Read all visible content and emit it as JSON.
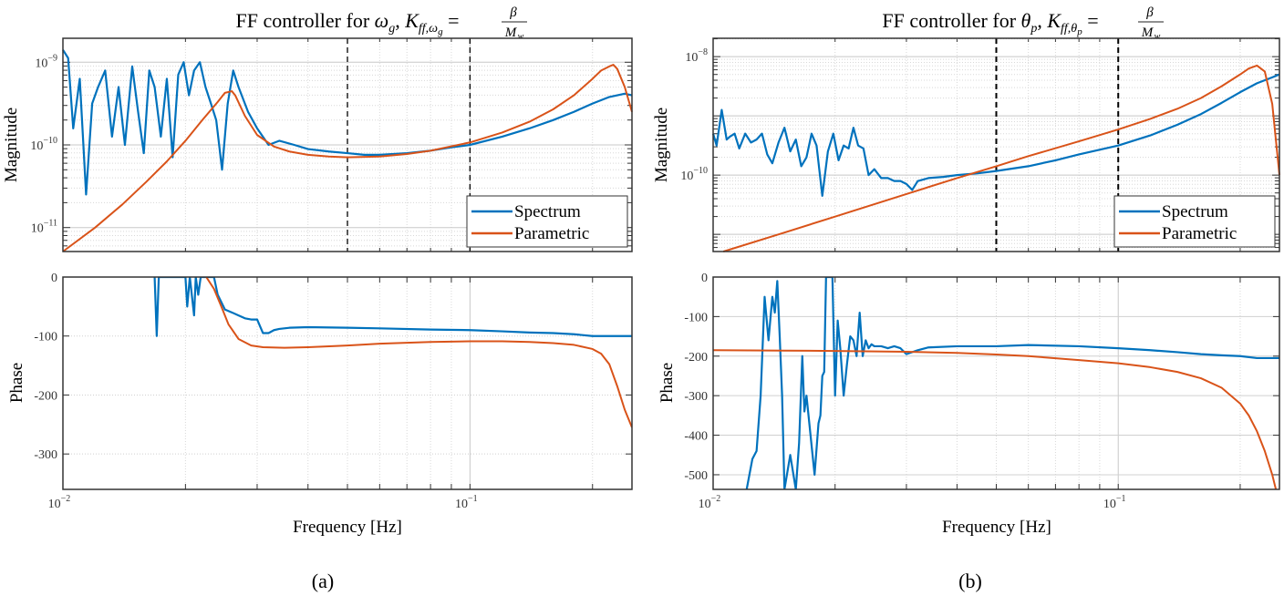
{
  "figure": {
    "captions": [
      "(a)",
      "(b)"
    ]
  },
  "chart_data": [
    {
      "type": "line",
      "panel": "a",
      "title": "FF controller for ωg, Kff,ωg = β / Mw",
      "title_parts": {
        "prefix": "FF controller for ",
        "var": "ω",
        "var_sub": "g",
        "k": "K",
        "k_sub": "ff,ω",
        "k_subsub": "g",
        "num": "β",
        "den": "M",
        "den_sub": "w"
      },
      "xlabel": "Frequency [Hz]",
      "xscale": "log",
      "xlim": [
        0.01,
        0.25
      ],
      "xticks": [
        {
          "value": 0.01,
          "base": "10",
          "exp": "−2"
        },
        {
          "value": 0.1,
          "base": "10",
          "exp": "−1"
        }
      ],
      "vlines": [
        0.05,
        0.1
      ],
      "legend": {
        "position": "bottom-right",
        "entries": [
          "Spectrum",
          "Parametric"
        ]
      },
      "colors": {
        "Spectrum": "#0072bd",
        "Parametric": "#d95319"
      },
      "magnitude": {
        "ylabel": "Magnitude",
        "yscale": "log",
        "ylim_log10": [
          -11.29,
          -8.71
        ],
        "yticks": [
          {
            "log10": -9,
            "base": "10",
            "exp": "−9"
          },
          {
            "log10": -10,
            "base": "10",
            "exp": "−10"
          },
          {
            "log10": -11,
            "base": "10",
            "exp": "−11"
          }
        ],
        "series": [
          {
            "name": "Spectrum",
            "x": [
              0.01,
              0.0103,
              0.0106,
              0.011,
              0.0114,
              0.0118,
              0.0122,
              0.0127,
              0.0132,
              0.0137,
              0.0142,
              0.0148,
              0.0153,
              0.0158,
              0.0163,
              0.0168,
              0.0174,
              0.018,
              0.0186,
              0.0192,
              0.0198,
              0.0204,
              0.021,
              0.0217,
              0.0224,
              0.0231,
              0.0238,
              0.0246,
              0.0254,
              0.0262,
              0.027,
              0.0285,
              0.03,
              0.032,
              0.034,
              0.037,
              0.04,
              0.045,
              0.05,
              0.055,
              0.06,
              0.07,
              0.08,
              0.09,
              0.1,
              0.12,
              0.14,
              0.16,
              0.18,
              0.2,
              0.22,
              0.24,
              0.25
            ],
            "y_log10": [
              -8.85,
              -8.95,
              -9.8,
              -9.2,
              -10.6,
              -9.5,
              -9.3,
              -9.1,
              -9.9,
              -9.3,
              -10.0,
              -9.05,
              -9.6,
              -10.1,
              -9.1,
              -9.3,
              -9.9,
              -9.2,
              -10.15,
              -9.15,
              -9.0,
              -9.4,
              -9.1,
              -9.0,
              -9.3,
              -9.5,
              -9.7,
              -10.3,
              -9.5,
              -9.1,
              -9.3,
              -9.6,
              -9.8,
              -10.0,
              -9.95,
              -10.0,
              -10.05,
              -10.08,
              -10.1,
              -10.12,
              -10.12,
              -10.1,
              -10.07,
              -10.03,
              -10.0,
              -9.9,
              -9.8,
              -9.7,
              -9.6,
              -9.5,
              -9.42,
              -9.38,
              -9.4
            ]
          },
          {
            "name": "Parametric",
            "x": [
              0.01,
              0.012,
              0.014,
              0.016,
              0.018,
              0.02,
              0.022,
              0.024,
              0.025,
              0.026,
              0.0265,
              0.028,
              0.03,
              0.033,
              0.036,
              0.04,
              0.045,
              0.05,
              0.06,
              0.07,
              0.08,
              0.1,
              0.12,
              0.14,
              0.16,
              0.18,
              0.2,
              0.21,
              0.22,
              0.225,
              0.23,
              0.24,
              0.25
            ],
            "y_log10": [
              -11.29,
              -11.0,
              -10.72,
              -10.45,
              -10.2,
              -9.95,
              -9.7,
              -9.48,
              -9.37,
              -9.35,
              -9.4,
              -9.65,
              -9.88,
              -10.02,
              -10.08,
              -10.12,
              -10.14,
              -10.15,
              -10.14,
              -10.11,
              -10.07,
              -9.97,
              -9.85,
              -9.72,
              -9.57,
              -9.4,
              -9.2,
              -9.1,
              -9.05,
              -9.03,
              -9.08,
              -9.3,
              -9.6
            ]
          }
        ]
      },
      "phase": {
        "ylabel": "Phase",
        "ylim": [
          -360,
          0
        ],
        "yticks": [
          0,
          -100,
          -200,
          -300
        ],
        "series": [
          {
            "name": "Spectrum",
            "x": [
              0.0168,
              0.017,
              0.0172,
              0.02,
              0.0202,
              0.0205,
              0.021,
              0.0212,
              0.0215,
              0.0218,
              0.022,
              0.0235,
              0.024,
              0.025,
              0.026,
              0.027,
              0.028,
              0.029,
              0.03,
              0.031,
              0.032,
              0.033,
              0.034,
              0.036,
              0.04,
              0.05,
              0.06,
              0.08,
              0.1,
              0.12,
              0.14,
              0.16,
              0.18,
              0.2,
              0.22,
              0.24,
              0.25
            ],
            "y": [
              0,
              -100,
              0,
              0,
              -50,
              0,
              -65,
              0,
              -30,
              0,
              0,
              0,
              -30,
              -55,
              -60,
              -65,
              -70,
              -72,
              -72,
              -95,
              -95,
              -90,
              -88,
              -86,
              -85,
              -86,
              -87,
              -89,
              -90,
              -92,
              -94,
              -95,
              -97,
              -100,
              -100,
              -100,
              -100
            ]
          },
          {
            "name": "Parametric",
            "x": [
              0.0225,
              0.0235,
              0.0245,
              0.0255,
              0.027,
              0.029,
              0.031,
              0.035,
              0.04,
              0.05,
              0.06,
              0.08,
              0.1,
              0.12,
              0.14,
              0.16,
              0.18,
              0.2,
              0.21,
              0.22,
              0.23,
              0.24,
              0.25
            ],
            "y": [
              0,
              -20,
              -50,
              -80,
              -105,
              -116,
              -119,
              -120,
              -119,
              -116,
              -113,
              -110,
              -109,
              -109,
              -110,
              -112,
              -115,
              -122,
              -130,
              -148,
              -185,
              -225,
              -255
            ]
          }
        ]
      }
    },
    {
      "type": "line",
      "panel": "b",
      "title": "FF controller for θp, Kff,θp = β / Mw",
      "title_parts": {
        "prefix": "FF controller for ",
        "var": "θ",
        "var_sub": "p",
        "k": "K",
        "k_sub": "ff,θ",
        "k_subsub": "p",
        "num": "β",
        "den": "M",
        "den_sub": "w"
      },
      "xlabel": "Frequency [Hz]",
      "xscale": "log",
      "xlim": [
        0.01,
        0.25
      ],
      "xticks": [
        {
          "value": 0.01,
          "base": "10",
          "exp": "−2"
        },
        {
          "value": 0.1,
          "base": "10",
          "exp": "−1"
        }
      ],
      "vlines": [
        0.05,
        0.1
      ],
      "legend": {
        "position": "bottom-right",
        "entries": [
          "Spectrum",
          "Parametric"
        ]
      },
      "colors": {
        "Spectrum": "#0072bd",
        "Parametric": "#d95319"
      },
      "magnitude": {
        "ylabel": "Magnitude",
        "yscale": "log",
        "ylim_log10": [
          -11.29,
          -7.69
        ],
        "yticks": [
          {
            "log10": -8,
            "base": "10",
            "exp": "−8"
          },
          {
            "log10": -10,
            "base": "10",
            "exp": "−10"
          }
        ],
        "series": [
          {
            "name": "Spectrum",
            "x": [
              0.01,
              0.0102,
              0.0105,
              0.0108,
              0.011,
              0.0113,
              0.0116,
              0.012,
              0.0124,
              0.0128,
              0.0132,
              0.0136,
              0.014,
              0.0145,
              0.015,
              0.0155,
              0.016,
              0.0165,
              0.017,
              0.0175,
              0.018,
              0.0186,
              0.0192,
              0.0198,
              0.0204,
              0.021,
              0.0216,
              0.0222,
              0.0228,
              0.0235,
              0.0242,
              0.025,
              0.026,
              0.027,
              0.028,
              0.029,
              0.03,
              0.031,
              0.032,
              0.034,
              0.037,
              0.04,
              0.045,
              0.05,
              0.06,
              0.07,
              0.08,
              0.1,
              0.12,
              0.14,
              0.16,
              0.18,
              0.2,
              0.22,
              0.24,
              0.25
            ],
            "y_log10": [
              -9.3,
              -9.5,
              -8.9,
              -9.4,
              -9.35,
              -9.3,
              -9.55,
              -9.3,
              -9.45,
              -9.4,
              -9.3,
              -9.65,
              -9.8,
              -9.45,
              -9.2,
              -9.6,
              -9.4,
              -9.85,
              -9.7,
              -9.3,
              -9.5,
              -10.35,
              -9.6,
              -9.3,
              -9.75,
              -9.5,
              -9.55,
              -9.2,
              -9.5,
              -9.55,
              -10.0,
              -9.9,
              -10.05,
              -10.05,
              -10.1,
              -10.1,
              -10.15,
              -10.25,
              -10.1,
              -10.05,
              -10.03,
              -10.0,
              -9.97,
              -9.93,
              -9.85,
              -9.75,
              -9.65,
              -9.5,
              -9.33,
              -9.15,
              -8.97,
              -8.78,
              -8.6,
              -8.45,
              -8.35,
              -8.3
            ]
          },
          {
            "name": "Parametric",
            "x": [
              0.0106,
              0.015,
              0.02,
              0.03,
              0.04,
              0.05,
              0.06,
              0.08,
              0.1,
              0.12,
              0.14,
              0.16,
              0.18,
              0.2,
              0.21,
              0.22,
              0.23,
              0.24,
              0.25
            ],
            "y_log10": [
              -11.29,
              -10.97,
              -10.7,
              -10.32,
              -10.05,
              -9.85,
              -9.68,
              -9.43,
              -9.23,
              -9.05,
              -8.88,
              -8.7,
              -8.5,
              -8.3,
              -8.2,
              -8.15,
              -8.25,
              -8.8,
              -10.0
            ]
          }
        ]
      },
      "phase": {
        "ylabel": "Phase",
        "ylim": [
          -537,
          0
        ],
        "yticks": [
          0,
          -100,
          -200,
          -300,
          -400,
          -500
        ],
        "series": [
          {
            "name": "Spectrum",
            "x": [
              0.0121,
              0.0125,
              0.0128,
              0.0131,
              0.0134,
              0.0137,
              0.014,
              0.0142,
              0.0144,
              0.0146,
              0.0148,
              0.015,
              0.0155,
              0.016,
              0.0163,
              0.0166,
              0.0168,
              0.017,
              0.0178,
              0.0182,
              0.0184,
              0.0186,
              0.0188,
              0.019,
              0.0192,
              0.0194,
              0.0197,
              0.02,
              0.0203,
              0.0206,
              0.021,
              0.0214,
              0.0218,
              0.0222,
              0.0226,
              0.023,
              0.0234,
              0.0238,
              0.0242,
              0.0246,
              0.025,
              0.026,
              0.027,
              0.028,
              0.029,
              0.03,
              0.032,
              0.034,
              0.04,
              0.05,
              0.06,
              0.08,
              0.1,
              0.12,
              0.14,
              0.16,
              0.18,
              0.2,
              0.22,
              0.24,
              0.25
            ],
            "y": [
              -537,
              -460,
              -440,
              -300,
              -50,
              -160,
              -50,
              -90,
              -10,
              -150,
              -300,
              -537,
              -450,
              -537,
              -420,
              -200,
              -340,
              -300,
              -500,
              -370,
              -350,
              -250,
              -240,
              0,
              0,
              0,
              0,
              -300,
              -110,
              -180,
              -300,
              -220,
              -150,
              -160,
              -200,
              -90,
              -200,
              -160,
              -180,
              -170,
              -175,
              -175,
              -180,
              -175,
              -180,
              -195,
              -185,
              -178,
              -175,
              -175,
              -172,
              -175,
              -180,
              -185,
              -190,
              -195,
              -198,
              -200,
              -205,
              -205,
              -205
            ]
          },
          {
            "name": "Parametric",
            "x": [
              0.01,
              0.015,
              0.02,
              0.03,
              0.04,
              0.05,
              0.06,
              0.08,
              0.1,
              0.12,
              0.14,
              0.16,
              0.18,
              0.2,
              0.21,
              0.22,
              0.23,
              0.24,
              0.245
            ],
            "y": [
              -185,
              -186,
              -187,
              -189,
              -192,
              -196,
              -200,
              -210,
              -218,
              -228,
              -240,
              -256,
              -280,
              -320,
              -350,
              -390,
              -440,
              -500,
              -537
            ]
          }
        ]
      }
    }
  ]
}
